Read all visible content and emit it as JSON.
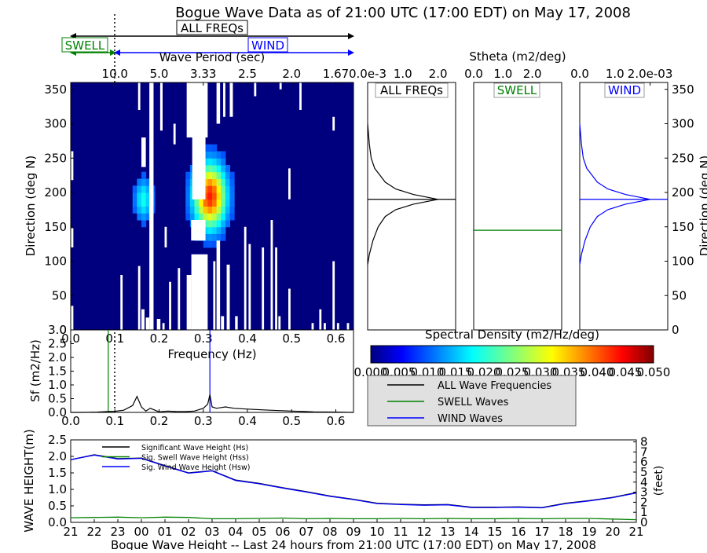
{
  "title": "Bogue Wave Data as of 21:00 UTC (17:00 EDT) on May 17, 2008",
  "colors": {
    "swell": "#008000",
    "wind": "#0000ff",
    "all": "#000000",
    "spectrum_background": "#00007f",
    "legend_background": "#e0e0e0"
  },
  "band_labels": {
    "all": "ALL FREQs",
    "swell": "SWELL",
    "wind": "WIND"
  },
  "chart_data": [
    {
      "type": "heatmap",
      "id": "directional-spectrum",
      "xlabel_top": "Wave Period (sec)",
      "x_top_ticks": [
        "10.0",
        "5.0",
        "3.33",
        "2.5",
        "2.0",
        "1.67"
      ],
      "ylabel": "Direction (deg N)",
      "xlim": [
        0.0,
        0.64
      ],
      "ylim": [
        0,
        360
      ],
      "y_ticks": [
        "350",
        "300",
        "250",
        "200",
        "150",
        "100",
        "50",
        "0"
      ],
      "separation_frequency_hz": 0.1,
      "hot_spot": {
        "frequency_hz": 0.31,
        "direction_deg": 190,
        "max_density": 0.05
      },
      "colormap": "jet"
    },
    {
      "type": "line",
      "id": "frequency-spectrum",
      "xlabel": "Frequency (Hz)",
      "ylabel": "Sf (m2/Hz)",
      "xlim": [
        0.0,
        0.64
      ],
      "ylim": [
        0.0,
        3.0
      ],
      "x_ticks": [
        "0.0",
        "0.1",
        "0.2",
        "0.3",
        "0.4",
        "0.5",
        "0.6"
      ],
      "y_ticks": [
        "0.0",
        "0.5",
        "1.0",
        "1.5",
        "2.0",
        "2.5",
        "3.0"
      ],
      "swell_peak_frequency_hz": 0.085,
      "wind_peak_frequency_hz": 0.315,
      "x": [
        0.0,
        0.03,
        0.06,
        0.08,
        0.1,
        0.12,
        0.14,
        0.15,
        0.16,
        0.17,
        0.18,
        0.2,
        0.22,
        0.24,
        0.26,
        0.28,
        0.3,
        0.31,
        0.315,
        0.32,
        0.33,
        0.35,
        0.37,
        0.4,
        0.45,
        0.5,
        0.55,
        0.6,
        0.64
      ],
      "values": [
        0.0,
        0.0,
        0.01,
        0.03,
        0.04,
        0.08,
        0.25,
        0.58,
        0.2,
        0.05,
        0.15,
        0.02,
        0.05,
        0.03,
        0.03,
        0.05,
        0.15,
        0.3,
        0.65,
        0.2,
        0.15,
        0.2,
        0.15,
        0.12,
        0.08,
        0.05,
        0.02,
        0.01,
        0.0
      ]
    },
    {
      "type": "line",
      "id": "stheta-all",
      "title": "ALL FREQs",
      "xlabel": "Stheta (m2/deg)",
      "x_ticks": [
        "0.0e-3",
        "1.0",
        "2.0"
      ],
      "xlim": [
        0,
        2.5
      ],
      "ylim": [
        0,
        360
      ],
      "peak_direction_deg": 190,
      "series": [
        {
          "x": [
            0.0,
            0.05,
            0.1,
            0.2,
            0.35,
            0.5,
            0.8,
            1.3,
            2.0,
            1.3,
            0.8,
            0.5,
            0.3,
            0.15,
            0.05,
            0.0
          ],
          "y": [
            300,
            270,
            250,
            235,
            225,
            215,
            205,
            197,
            190,
            183,
            175,
            165,
            150,
            130,
            110,
            95
          ]
        }
      ]
    },
    {
      "type": "line",
      "id": "stheta-swell",
      "title": "SWELL",
      "x_ticks": [
        "0.0",
        "1.0",
        "2.0"
      ],
      "xlim": [
        0,
        3.0
      ],
      "ylim": [
        0,
        360
      ],
      "peak_direction_deg": 145
    },
    {
      "type": "line",
      "id": "stheta-wind",
      "title": "WIND",
      "x_ticks": [
        "0.0",
        "1.0",
        "2.0e-03"
      ],
      "xlim": [
        0,
        2.5
      ],
      "ylim": [
        0,
        360
      ],
      "y_ticks": [
        "350",
        "300",
        "250",
        "200",
        "150",
        "100",
        "50",
        "0"
      ],
      "ylabel": "Direction (deg N)",
      "peak_direction_deg": 190,
      "series": [
        {
          "x": [
            0.0,
            0.05,
            0.1,
            0.2,
            0.35,
            0.5,
            0.8,
            1.3,
            2.0,
            1.3,
            0.8,
            0.5,
            0.3,
            0.15,
            0.05,
            0.0
          ],
          "y": [
            300,
            270,
            250,
            235,
            225,
            215,
            205,
            197,
            190,
            183,
            175,
            165,
            150,
            130,
            110,
            95
          ]
        }
      ]
    },
    {
      "type": "colorbar",
      "id": "spectral-density-colorbar",
      "title": "Spectral Density (m2/Hz/deg)",
      "range": [
        0.0,
        0.05
      ],
      "ticks": [
        "0.000",
        "0.005",
        "0.010",
        "0.015",
        "0.020",
        "0.025",
        "0.030",
        "0.035",
        "0.040",
        "0.045",
        "0.050"
      ],
      "colormap": "jet"
    },
    {
      "type": "line",
      "id": "wave-height-24h",
      "xlabel": "Bogue Wave Height -- Last 24 hours from 21:00 UTC (17:00 EDT) on May 17, 2008",
      "ylabel": "WAVE HEIGHT(m)",
      "ylabel_right": "(feet)",
      "categories": [
        "21",
        "22",
        "23",
        "00",
        "01",
        "02",
        "03",
        "04",
        "05",
        "06",
        "07",
        "08",
        "09",
        "10",
        "11",
        "12",
        "13",
        "14",
        "15",
        "16",
        "17",
        "18",
        "19",
        "20",
        "21"
      ],
      "ylim": [
        0,
        2.5
      ],
      "y_ticks": [
        "0.0",
        "0.5",
        "1.0",
        "1.5",
        "2.0",
        "2.5"
      ],
      "y_ticks_right": [
        "0",
        "1",
        "2",
        "3",
        "4",
        "5",
        "6",
        "7",
        "8"
      ],
      "legend_position": "top-left",
      "series": [
        {
          "name": "Significant Wave Height (Hs)",
          "color": "#000000",
          "values": [
            1.9,
            2.05,
            1.93,
            1.95,
            1.72,
            1.5,
            1.57,
            1.28,
            1.18,
            1.05,
            0.93,
            0.8,
            0.7,
            0.58,
            0.55,
            0.53,
            0.54,
            0.46,
            0.46,
            0.47,
            0.45,
            0.58,
            0.66,
            0.76,
            0.9
          ]
        },
        {
          "name": "Sig. Swell Wave Height (Hss)",
          "color": "#008000",
          "values": [
            0.14,
            0.15,
            0.16,
            0.14,
            0.16,
            0.15,
            0.11,
            0.11,
            0.12,
            0.13,
            0.11,
            0.12,
            0.11,
            0.11,
            0.12,
            0.11,
            0.12,
            0.11,
            0.11,
            0.12,
            0.11,
            0.12,
            0.12,
            0.1,
            0.08
          ]
        },
        {
          "name": "Sig. Wind Wave Height (Hsw)",
          "color": "#0000ff",
          "values": [
            1.9,
            2.04,
            1.92,
            1.94,
            1.71,
            1.49,
            1.56,
            1.27,
            1.17,
            1.04,
            0.92,
            0.79,
            0.69,
            0.57,
            0.54,
            0.52,
            0.53,
            0.45,
            0.45,
            0.46,
            0.44,
            0.57,
            0.65,
            0.75,
            0.89
          ]
        }
      ]
    }
  ],
  "spectrum_legend": {
    "items": [
      {
        "label": "ALL Wave Frequencies",
        "color": "#000000"
      },
      {
        "label": "SWELL Waves",
        "color": "#008000"
      },
      {
        "label": "WIND Waves",
        "color": "#0000ff"
      }
    ]
  }
}
